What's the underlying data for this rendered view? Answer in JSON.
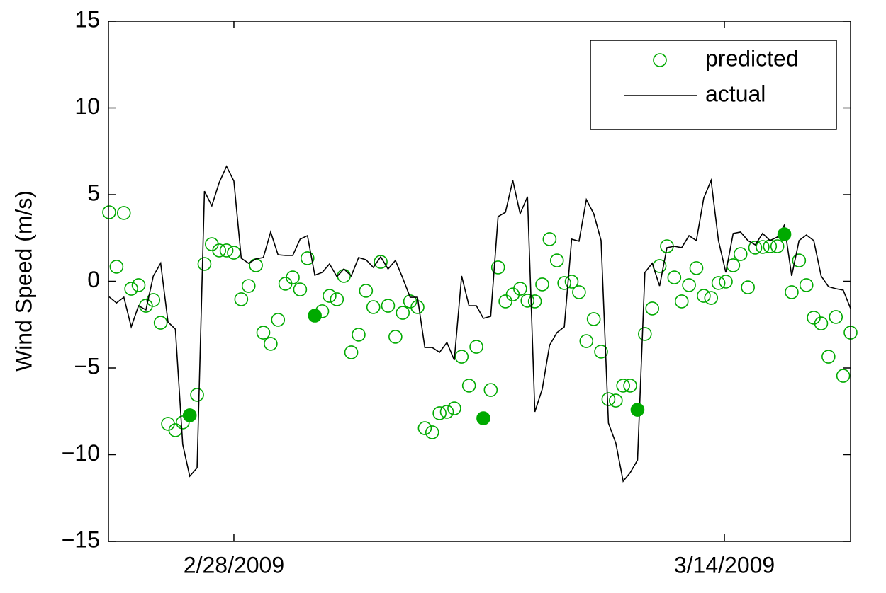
{
  "chart_data": {
    "type": "line",
    "ylabel": "Wind Speed (m/s)",
    "x": [
      55.44,
      55.65,
      55.86,
      56.07,
      56.28,
      56.49,
      56.7,
      56.91,
      57.12,
      57.33,
      57.54,
      57.74,
      57.95,
      58.16,
      58.37,
      58.58,
      58.79,
      59.0,
      59.21,
      59.42,
      59.63,
      59.84,
      60.05,
      60.26,
      60.47,
      60.68,
      60.89,
      61.1,
      61.31,
      61.52,
      61.73,
      61.94,
      62.14,
      62.35,
      62.56,
      62.77,
      62.98,
      63.19,
      63.4,
      63.61,
      63.82,
      64.03,
      64.24,
      64.45,
      64.66,
      64.87,
      65.08,
      65.29,
      65.5,
      65.71,
      65.92,
      66.12,
      66.33,
      66.54,
      66.75,
      66.96,
      67.17,
      67.38,
      67.59,
      67.8,
      68.01,
      68.22,
      68.43,
      68.64,
      68.85,
      69.06,
      69.27,
      69.48,
      69.69,
      69.9,
      70.11,
      70.31,
      70.52,
      70.73,
      70.94,
      71.15,
      71.36,
      71.57,
      71.78,
      71.99,
      72.2,
      72.41,
      72.62,
      72.83,
      73.04,
      73.25,
      73.46,
      73.67,
      73.88,
      74.09,
      74.3,
      74.51,
      74.71,
      74.92,
      75.13,
      75.34,
      75.55,
      75.76,
      75.97,
      76.18,
      76.39,
      76.6
    ],
    "series": [
      {
        "name": "predicted",
        "color": "#00aa00",
        "marker": "open-circle",
        "values": [
          3.98,
          0.84,
          3.94,
          -0.43,
          -0.22,
          -1.41,
          -1.08,
          -2.39,
          -8.22,
          -8.59,
          -8.14,
          null,
          -6.55,
          1.0,
          2.14,
          1.78,
          1.78,
          1.65,
          -1.04,
          -0.27,
          0.92,
          -2.96,
          -3.61,
          -2.22,
          -0.14,
          0.22,
          -0.47,
          1.33,
          null,
          -1.73,
          -0.84,
          -1.04,
          0.31,
          -4.1,
          -3.08,
          -0.55,
          -1.49,
          1.12,
          -1.41,
          -3.2,
          -1.82,
          -1.16,
          -1.49,
          -8.47,
          -8.71,
          -7.61,
          -7.53,
          -7.33,
          -4.35,
          -6.02,
          -3.78,
          null,
          -6.27,
          0.8,
          -1.16,
          -0.76,
          -0.43,
          -1.12,
          -1.16,
          -0.18,
          2.43,
          1.2,
          -0.1,
          -0.02,
          -0.63,
          -3.45,
          -2.18,
          -4.06,
          -6.8,
          -6.88,
          -6.02,
          -6.02,
          null,
          -3.04,
          -1.57,
          0.88,
          2.02,
          0.22,
          -1.16,
          -0.22,
          0.76,
          -0.84,
          -0.96,
          -0.1,
          -0.02,
          0.92,
          1.57,
          -0.35,
          1.94,
          1.98,
          2.02,
          2.02,
          null,
          -0.63,
          1.2,
          -0.22,
          -2.1,
          -2.43,
          -4.35,
          -2.06,
          -5.45,
          -2.96
        ]
      },
      {
        "name": "actual",
        "color": "#000000",
        "marker": "line",
        "values": [
          -0.9,
          -1.25,
          -0.92,
          -2.63,
          -1.41,
          -1.65,
          0.3,
          1.04,
          -2.35,
          -2.76,
          -9.41,
          -11.24,
          -10.76,
          5.2,
          4.35,
          5.69,
          6.63,
          5.78,
          1.33,
          1.04,
          1.29,
          1.37,
          2.84,
          1.53,
          1.49,
          1.49,
          2.43,
          2.63,
          0.35,
          0.51,
          1.0,
          0.27,
          0.71,
          0.31,
          1.37,
          1.24,
          0.8,
          1.41,
          0.71,
          1.2,
          0.18,
          -0.92,
          -0.92,
          -3.82,
          -3.82,
          -4.1,
          -3.53,
          -4.55,
          0.31,
          -1.41,
          -1.41,
          -2.14,
          -2.02,
          3.73,
          3.98,
          5.82,
          3.9,
          4.88,
          -7.53,
          -6.22,
          -3.69,
          -2.96,
          -2.63,
          2.43,
          2.31,
          4.71,
          3.9,
          2.35,
          -8.18,
          -9.33,
          -11.53,
          -11.04,
          -10.31,
          0.51,
          1.04,
          -0.27,
          1.94,
          2.02,
          1.94,
          2.63,
          2.35,
          4.8,
          5.82,
          2.35,
          0.51,
          2.76,
          2.84,
          2.35,
          2.1,
          2.76,
          2.35,
          2.55,
          3.24,
          0.31,
          2.35,
          2.67,
          2.35,
          0.31,
          -0.31,
          -0.43,
          -0.51,
          -1.57
        ]
      },
      {
        "color": "#00aa00",
        "marker": "filled-circle",
        "values": [
          null,
          null,
          null,
          null,
          null,
          null,
          null,
          null,
          null,
          null,
          null,
          -7.73,
          null,
          null,
          null,
          null,
          null,
          null,
          null,
          null,
          null,
          null,
          null,
          null,
          null,
          null,
          null,
          null,
          -1.98,
          null,
          null,
          null,
          null,
          null,
          null,
          null,
          null,
          null,
          null,
          null,
          null,
          null,
          null,
          null,
          null,
          null,
          null,
          null,
          null,
          null,
          null,
          -7.9,
          null,
          null,
          null,
          null,
          null,
          null,
          null,
          null,
          null,
          null,
          null,
          null,
          null,
          null,
          null,
          null,
          null,
          null,
          null,
          null,
          -7.41,
          null,
          null,
          null,
          null,
          null,
          null,
          null,
          null,
          null,
          null,
          null,
          null,
          null,
          null,
          null,
          null,
          null,
          null,
          null,
          2.71,
          null,
          null,
          null,
          null,
          null,
          null,
          null,
          null,
          null
        ]
      }
    ],
    "xlim": [
      55.42,
      76.6
    ],
    "xticks": [
      {
        "value": 59,
        "label": "2/28/2009"
      },
      {
        "value": 73,
        "label": "3/14/2009"
      }
    ],
    "ylim": [
      -15,
      15
    ],
    "yticks": [
      {
        "value": -15,
        "label": "−15"
      },
      {
        "value": -10,
        "label": "−10"
      },
      {
        "value": -5,
        "label": "−5"
      },
      0,
      5,
      10,
      15
    ],
    "grid": false,
    "legend": "upper-right"
  }
}
